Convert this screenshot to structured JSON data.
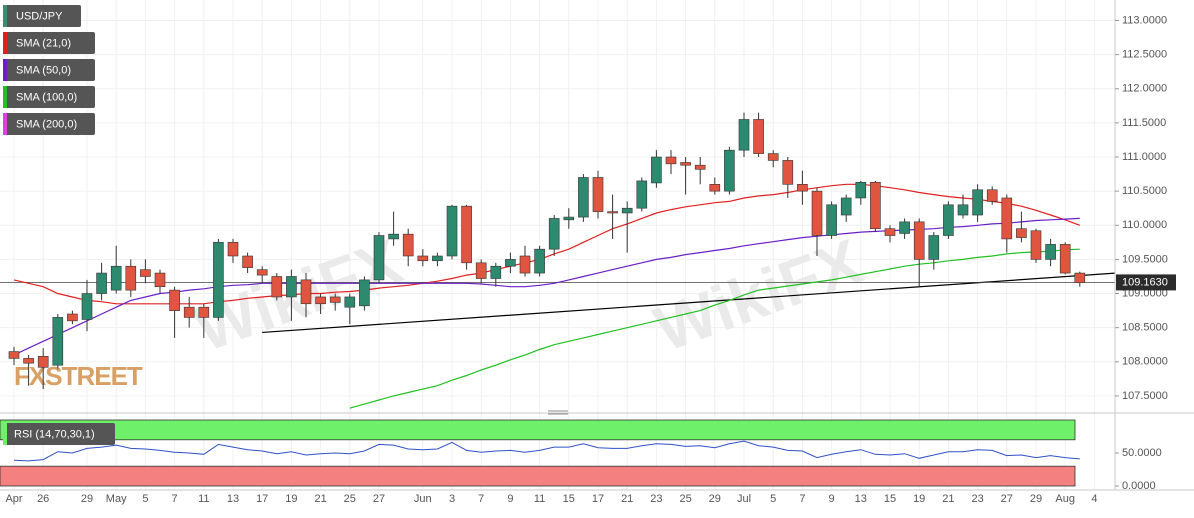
{
  "chart_data": {
    "type": "candlestick",
    "symbol": "USD/JPY",
    "symbol_color": "#3d8c76",
    "up_color": "#2e8a6e",
    "down_color": "#e0553f",
    "watermarks": [
      "WikiFX",
      "FXSTREET"
    ],
    "categories": [
      "Apr",
      null,
      "26",
      null,
      null,
      "29",
      null,
      "May",
      null,
      "5",
      null,
      "7",
      null,
      "11",
      null,
      "13",
      null,
      "17",
      null,
      "19",
      null,
      "21",
      null,
      "25",
      null,
      "27",
      null,
      null,
      "Jun",
      null,
      "3",
      null,
      "7",
      null,
      "9",
      null,
      "11",
      null,
      "15",
      null,
      "17",
      null,
      "21",
      null,
      "23",
      null,
      "25",
      null,
      "29",
      null,
      "Jul",
      null,
      "5",
      null,
      "7",
      null,
      "9",
      null,
      "13",
      null,
      "15",
      null,
      "19",
      null,
      "21",
      null,
      "23",
      null,
      "27",
      null,
      "29",
      null,
      "Aug",
      null,
      "4"
    ],
    "ohlc": {
      "open": [
        108.15,
        108.05,
        108.08,
        107.95,
        108.7,
        108.62,
        109.0,
        109.05,
        109.4,
        109.35,
        109.3,
        109.05,
        108.8,
        108.8,
        108.65,
        109.75,
        109.55,
        109.35,
        109.25,
        108.95,
        109.2,
        108.95,
        108.95,
        108.8,
        108.82,
        109.2,
        109.8,
        109.87,
        109.55,
        109.48,
        109.55,
        110.28,
        109.45,
        109.22,
        109.4,
        109.55,
        109.3,
        109.65,
        110.08,
        110.12,
        110.7,
        110.2,
        110.18,
        110.25,
        110.62,
        111.0,
        110.92,
        110.88,
        110.6,
        110.5,
        111.1,
        111.55,
        111.05,
        110.95,
        110.6,
        110.5,
        109.85,
        110.15,
        110.4,
        110.63,
        109.95,
        109.88,
        110.05,
        109.5,
        109.85,
        110.15,
        110.15,
        110.52,
        110.4,
        109.95,
        109.92,
        109.5,
        109.72,
        109.3,
        null
      ],
      "high": [
        108.22,
        108.1,
        108.2,
        108.7,
        108.75,
        109.2,
        109.45,
        109.7,
        109.5,
        109.5,
        109.35,
        109.1,
        108.95,
        108.85,
        109.8,
        109.8,
        109.6,
        109.4,
        109.3,
        109.35,
        109.3,
        109.0,
        109.0,
        109.0,
        109.25,
        109.9,
        110.2,
        109.95,
        109.65,
        109.6,
        110.3,
        110.3,
        109.5,
        109.45,
        109.6,
        109.7,
        109.7,
        110.15,
        110.25,
        110.75,
        110.8,
        110.45,
        110.35,
        110.7,
        111.1,
        111.1,
        111.0,
        111.0,
        110.7,
        111.15,
        111.65,
        111.65,
        111.1,
        111.0,
        110.8,
        110.55,
        110.35,
        110.45,
        110.65,
        110.65,
        110.0,
        110.1,
        110.1,
        109.9,
        110.35,
        110.45,
        110.6,
        110.57,
        110.45,
        110.2,
        109.95,
        109.8,
        109.75,
        109.32,
        null
      ],
      "low": [
        107.95,
        107.65,
        107.6,
        107.9,
        108.55,
        108.45,
        108.9,
        109.0,
        108.95,
        109.15,
        109.0,
        108.35,
        108.5,
        108.35,
        108.6,
        109.45,
        109.3,
        109.15,
        108.9,
        108.6,
        108.65,
        108.7,
        108.75,
        108.55,
        108.75,
        109.15,
        109.7,
        109.4,
        109.4,
        109.4,
        109.5,
        109.35,
        109.15,
        109.1,
        109.3,
        109.25,
        109.25,
        109.55,
        109.95,
        110.05,
        110.1,
        109.8,
        109.6,
        110.2,
        110.55,
        110.75,
        110.45,
        110.6,
        110.45,
        110.45,
        111.0,
        111.0,
        110.85,
        110.4,
        110.3,
        109.55,
        109.8,
        110.05,
        110.3,
        109.9,
        109.75,
        109.8,
        109.1,
        109.35,
        109.8,
        110.1,
        110.05,
        110.3,
        109.6,
        109.75,
        109.45,
        109.4,
        109.28,
        109.1,
        null
      ],
      "close": [
        108.05,
        107.98,
        107.92,
        108.65,
        108.6,
        109.0,
        109.3,
        109.4,
        109.05,
        109.25,
        109.1,
        108.75,
        108.65,
        108.65,
        109.75,
        109.55,
        109.38,
        109.27,
        108.95,
        109.25,
        108.85,
        108.85,
        108.87,
        108.95,
        109.2,
        109.85,
        109.87,
        109.55,
        109.48,
        109.55,
        110.28,
        109.45,
        109.22,
        109.4,
        109.5,
        109.3,
        109.65,
        110.1,
        110.12,
        110.7,
        110.2,
        110.18,
        110.25,
        110.65,
        111.0,
        110.9,
        110.88,
        110.82,
        110.5,
        111.1,
        111.55,
        111.05,
        110.95,
        110.6,
        110.5,
        109.85,
        110.3,
        110.4,
        110.63,
        109.95,
        109.85,
        110.05,
        109.5,
        109.85,
        110.3,
        110.3,
        110.52,
        110.35,
        109.8,
        109.82,
        109.5,
        109.72,
        109.3,
        109.16,
        null
      ]
    },
    "series": [
      {
        "name": "SMA (21,0)",
        "color": "#e02020",
        "values": [
          109.2,
          109.15,
          109.1,
          109.0,
          108.95,
          108.9,
          108.88,
          108.85,
          108.85,
          108.85,
          108.85,
          108.85,
          108.85,
          108.85,
          108.88,
          108.9,
          108.93,
          108.95,
          108.97,
          108.98,
          109.0,
          109.0,
          109.02,
          109.03,
          109.05,
          109.08,
          109.1,
          109.12,
          109.15,
          109.18,
          109.22,
          109.27,
          109.3,
          109.35,
          109.4,
          109.45,
          109.5,
          109.58,
          109.65,
          109.75,
          109.85,
          109.95,
          110.02,
          110.1,
          110.18,
          110.23,
          110.27,
          110.3,
          110.33,
          110.35,
          110.4,
          110.43,
          110.45,
          110.48,
          110.52,
          110.55,
          110.58,
          110.6,
          110.6,
          110.58,
          110.55,
          110.52,
          110.48,
          110.45,
          110.42,
          110.4,
          110.38,
          110.35,
          110.32,
          110.28,
          110.22,
          110.15,
          110.08,
          110.0,
          null
        ]
      },
      {
        "name": "SMA (50,0)",
        "color": "#6a1fc8",
        "values": [
          108.1,
          108.2,
          108.3,
          108.4,
          108.5,
          108.6,
          108.7,
          108.8,
          108.9,
          108.95,
          109.0,
          109.02,
          109.05,
          109.07,
          109.1,
          109.12,
          109.13,
          109.15,
          109.15,
          109.15,
          109.15,
          109.15,
          109.15,
          109.15,
          109.15,
          109.15,
          109.15,
          109.15,
          109.15,
          109.15,
          109.15,
          109.15,
          109.14,
          109.12,
          109.1,
          109.1,
          109.12,
          109.15,
          109.2,
          109.25,
          109.3,
          109.35,
          109.4,
          109.45,
          109.5,
          109.53,
          109.57,
          109.6,
          109.63,
          109.66,
          109.7,
          109.73,
          109.76,
          109.79,
          109.82,
          109.84,
          109.86,
          109.88,
          109.9,
          109.91,
          109.92,
          109.93,
          109.94,
          109.95,
          109.97,
          109.98,
          110.0,
          110.02,
          110.03,
          110.05,
          110.07,
          110.08,
          110.09,
          110.1,
          null
        ]
      },
      {
        "name": "SMA (100,0)",
        "color": "#22c022",
        "values": [
          null,
          null,
          null,
          null,
          null,
          null,
          null,
          null,
          null,
          null,
          null,
          null,
          null,
          null,
          null,
          null,
          null,
          null,
          null,
          null,
          null,
          null,
          null,
          107.32,
          107.38,
          107.44,
          107.5,
          107.55,
          107.6,
          107.65,
          107.73,
          107.8,
          107.88,
          107.95,
          108.03,
          108.1,
          108.18,
          108.25,
          108.3,
          108.35,
          108.4,
          108.45,
          108.5,
          108.55,
          108.6,
          108.65,
          108.7,
          108.75,
          108.83,
          108.9,
          108.98,
          109.05,
          109.08,
          109.11,
          109.14,
          109.17,
          109.2,
          109.24,
          109.28,
          109.32,
          109.36,
          109.4,
          109.43,
          109.45,
          109.48,
          109.5,
          109.53,
          109.55,
          109.58,
          109.6,
          109.61,
          109.62,
          109.64,
          109.65,
          null
        ]
      },
      {
        "name": "SMA (200,0)",
        "color": "#e040e0",
        "values": [
          null,
          null,
          null,
          null,
          null,
          null,
          null,
          null,
          null,
          null,
          null,
          null,
          null,
          null,
          null,
          null,
          null,
          null,
          null,
          null,
          null,
          null,
          null,
          null,
          null,
          null,
          null,
          null,
          null,
          null,
          null,
          null,
          null,
          null,
          null,
          null,
          null,
          null,
          null,
          null,
          null,
          null,
          null,
          null,
          null,
          null,
          null,
          null,
          null,
          null,
          null,
          null,
          null,
          null,
          null,
          null,
          null,
          null,
          null,
          null,
          null,
          null,
          null,
          null,
          null,
          null,
          null,
          null,
          null,
          null,
          null,
          null,
          null,
          null,
          null
        ]
      }
    ],
    "trendline": {
      "x": [
        17,
        75.5
      ],
      "values": [
        108.43,
        109.3
      ],
      "color": "#000000"
    },
    "last_price": {
      "value": 109.163,
      "label": "109.1630"
    },
    "ylim": [
      107.25,
      113.3
    ],
    "yticks": [
      {
        "value": 107.5,
        "label": "107.5000"
      },
      {
        "value": 108.0,
        "label": "108.0000"
      },
      {
        "value": 108.5,
        "label": "108.5000"
      },
      {
        "value": 109.0,
        "label": "109.0000"
      },
      {
        "value": 109.5,
        "label": "109.5000"
      },
      {
        "value": 110.0,
        "label": "110.0000"
      },
      {
        "value": 110.5,
        "label": "110.5000"
      },
      {
        "value": 111.0,
        "label": "111.0000"
      },
      {
        "value": 111.5,
        "label": "111.5000"
      },
      {
        "value": 112.0,
        "label": "112.0000"
      },
      {
        "value": 112.5,
        "label": "112.5000"
      },
      {
        "value": 113.0,
        "label": "113.0000"
      }
    ],
    "grid": true,
    "rsi": {
      "label": "RSI (14,70,30,1)",
      "color": "#3050c8",
      "overbought": 70,
      "oversold": 30,
      "overbought_color": "#6ef06a",
      "oversold_color": "#f48080",
      "ylim": [
        0,
        100
      ],
      "yticks": [
        {
          "value": 50,
          "label": "50.0000"
        },
        {
          "value": 0,
          "label": "0.0000"
        }
      ],
      "values": [
        39,
        38,
        40,
        52,
        50,
        57,
        59,
        62,
        57,
        56,
        54,
        51,
        50,
        48,
        63,
        59,
        55,
        53,
        49,
        52,
        47,
        49,
        50,
        49,
        53,
        63,
        62,
        56,
        55,
        56,
        66,
        54,
        51,
        53,
        54,
        51,
        54,
        59,
        59,
        64,
        58,
        57,
        57,
        61,
        64,
        63,
        60,
        61,
        58,
        64,
        68,
        61,
        59,
        54,
        53,
        43,
        48,
        52,
        55,
        48,
        47,
        49,
        42,
        47,
        52,
        52,
        55,
        54,
        46,
        47,
        43,
        46,
        43,
        41,
        null
      ]
    }
  }
}
